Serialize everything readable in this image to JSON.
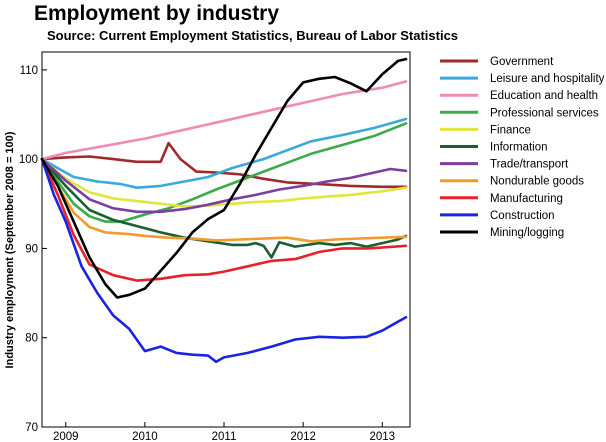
{
  "chart_data": {
    "type": "line",
    "title": "Employment by industry",
    "subtitle": "Source: Current Employment Statistics, Bureau of Labor Statistics",
    "xlabel": "",
    "ylabel": "Industry employment (September 2008 = 100)",
    "xlim": [
      2008.7,
      2013.35
    ],
    "ylim": [
      70,
      112
    ],
    "yticks": [
      70,
      80,
      90,
      100,
      110
    ],
    "xticks": [
      {
        "value": 2009.0,
        "label": "2009"
      },
      {
        "value": 2010.0,
        "label": "2010"
      },
      {
        "value": 2011.0,
        "label": "2011"
      },
      {
        "value": 2012.0,
        "label": "2012"
      },
      {
        "value": 2013.0,
        "label": "2013"
      }
    ],
    "grid": false,
    "legend_position": "right",
    "series": [
      {
        "name": "Government",
        "color": "#9e2a2b",
        "points": [
          [
            2008.7,
            100
          ],
          [
            2009.0,
            100.2
          ],
          [
            2009.3,
            100.3
          ],
          [
            2009.6,
            100
          ],
          [
            2009.9,
            99.7
          ],
          [
            2010.2,
            99.7
          ],
          [
            2010.3,
            101.8
          ],
          [
            2010.45,
            100
          ],
          [
            2010.65,
            98.6
          ],
          [
            2010.9,
            98.5
          ],
          [
            2011.2,
            98.3
          ],
          [
            2011.5,
            97.8
          ],
          [
            2011.8,
            97.4
          ],
          [
            2012.2,
            97.2
          ],
          [
            2012.6,
            97
          ],
          [
            2013.0,
            96.9
          ],
          [
            2013.3,
            96.9
          ]
        ]
      },
      {
        "name": "Leisure and hospitality",
        "color": "#39a9dc",
        "points": [
          [
            2008.7,
            100
          ],
          [
            2008.9,
            99
          ],
          [
            2009.1,
            98
          ],
          [
            2009.4,
            97.5
          ],
          [
            2009.7,
            97.2
          ],
          [
            2009.9,
            96.8
          ],
          [
            2010.2,
            97
          ],
          [
            2010.5,
            97.5
          ],
          [
            2010.8,
            98
          ],
          [
            2011.1,
            99
          ],
          [
            2011.5,
            100
          ],
          [
            2011.8,
            101
          ],
          [
            2012.1,
            102
          ],
          [
            2012.5,
            102.7
          ],
          [
            2012.9,
            103.5
          ],
          [
            2013.3,
            104.5
          ]
        ]
      },
      {
        "name": "Education and health",
        "color": "#f08bb5",
        "points": [
          [
            2008.7,
            100
          ],
          [
            2009.0,
            100.7
          ],
          [
            2009.5,
            101.5
          ],
          [
            2010.0,
            102.3
          ],
          [
            2010.5,
            103.3
          ],
          [
            2011.0,
            104.3
          ],
          [
            2011.5,
            105.3
          ],
          [
            2012.0,
            106.3
          ],
          [
            2012.5,
            107.3
          ],
          [
            2013.0,
            108
          ],
          [
            2013.3,
            108.7
          ]
        ]
      },
      {
        "name": "Professional services",
        "color": "#3aaa4a",
        "points": [
          [
            2008.7,
            100
          ],
          [
            2008.9,
            97.5
          ],
          [
            2009.1,
            95
          ],
          [
            2009.3,
            93.6
          ],
          [
            2009.5,
            93
          ],
          [
            2009.7,
            93
          ],
          [
            2010.0,
            93.8
          ],
          [
            2010.3,
            94.5
          ],
          [
            2010.6,
            95.5
          ],
          [
            2010.9,
            96.6
          ],
          [
            2011.2,
            97.6
          ],
          [
            2011.5,
            98.6
          ],
          [
            2011.8,
            99.6
          ],
          [
            2012.1,
            100.6
          ],
          [
            2012.5,
            101.6
          ],
          [
            2012.9,
            102.6
          ],
          [
            2013.3,
            104
          ]
        ]
      },
      {
        "name": "Finance",
        "color": "#e2e63c",
        "points": [
          [
            2008.7,
            100
          ],
          [
            2009.0,
            97.8
          ],
          [
            2009.3,
            96.3
          ],
          [
            2009.6,
            95.6
          ],
          [
            2009.9,
            95.3
          ],
          [
            2010.2,
            95
          ],
          [
            2010.5,
            94.7
          ],
          [
            2010.8,
            94.8
          ],
          [
            2011.1,
            95
          ],
          [
            2011.4,
            95.2
          ],
          [
            2011.7,
            95.3
          ],
          [
            2012.0,
            95.6
          ],
          [
            2012.3,
            95.8
          ],
          [
            2012.6,
            96
          ],
          [
            2013.0,
            96.4
          ],
          [
            2013.3,
            96.8
          ]
        ]
      },
      {
        "name": "Information",
        "color": "#1a5e32",
        "points": [
          [
            2008.7,
            100
          ],
          [
            2009.0,
            97
          ],
          [
            2009.3,
            94.3
          ],
          [
            2009.6,
            93.2
          ],
          [
            2009.9,
            92.5
          ],
          [
            2010.2,
            91.8
          ],
          [
            2010.5,
            91.2
          ],
          [
            2010.8,
            90.8
          ],
          [
            2011.1,
            90.4
          ],
          [
            2011.3,
            90.4
          ],
          [
            2011.4,
            90.6
          ],
          [
            2011.5,
            90.3
          ],
          [
            2011.6,
            89
          ],
          [
            2011.7,
            90.7
          ],
          [
            2011.9,
            90.2
          ],
          [
            2012.2,
            90.6
          ],
          [
            2012.4,
            90.4
          ],
          [
            2012.6,
            90.6
          ],
          [
            2012.8,
            90.2
          ],
          [
            2013.0,
            90.6
          ],
          [
            2013.2,
            91
          ],
          [
            2013.3,
            91.4
          ]
        ]
      },
      {
        "name": "Trade/transport",
        "color": "#7a3fa0",
        "points": [
          [
            2008.7,
            100
          ],
          [
            2009.0,
            97.6
          ],
          [
            2009.3,
            95.5
          ],
          [
            2009.6,
            94.5
          ],
          [
            2009.9,
            94.1
          ],
          [
            2010.2,
            94.1
          ],
          [
            2010.5,
            94.4
          ],
          [
            2010.8,
            94.9
          ],
          [
            2011.1,
            95.5
          ],
          [
            2011.4,
            96
          ],
          [
            2011.7,
            96.6
          ],
          [
            2012.0,
            97
          ],
          [
            2012.3,
            97.5
          ],
          [
            2012.6,
            97.9
          ],
          [
            2012.9,
            98.5
          ],
          [
            2013.1,
            98.9
          ],
          [
            2013.3,
            98.7
          ]
        ]
      },
      {
        "name": "Nondurable goods",
        "color": "#f29a2e",
        "points": [
          [
            2008.7,
            100
          ],
          [
            2008.9,
            97
          ],
          [
            2009.1,
            94
          ],
          [
            2009.3,
            92.4
          ],
          [
            2009.5,
            91.8
          ],
          [
            2009.8,
            91.6
          ],
          [
            2010.0,
            91.4
          ],
          [
            2010.3,
            91.2
          ],
          [
            2010.6,
            91.1
          ],
          [
            2010.9,
            90.9
          ],
          [
            2011.2,
            91
          ],
          [
            2011.5,
            91.1
          ],
          [
            2011.8,
            91.2
          ],
          [
            2012.1,
            90.8
          ],
          [
            2012.4,
            91
          ],
          [
            2012.7,
            91.1
          ],
          [
            2013.0,
            91.2
          ],
          [
            2013.3,
            91.3
          ]
        ]
      },
      {
        "name": "Manufacturing",
        "color": "#e8202a",
        "points": [
          [
            2008.7,
            100
          ],
          [
            2008.9,
            96
          ],
          [
            2009.1,
            91.5
          ],
          [
            2009.3,
            88.2
          ],
          [
            2009.6,
            87
          ],
          [
            2009.9,
            86.4
          ],
          [
            2010.2,
            86.6
          ],
          [
            2010.5,
            87
          ],
          [
            2010.8,
            87.1
          ],
          [
            2011.0,
            87.4
          ],
          [
            2011.3,
            88
          ],
          [
            2011.6,
            88.6
          ],
          [
            2011.9,
            88.8
          ],
          [
            2012.2,
            89.6
          ],
          [
            2012.5,
            90
          ],
          [
            2012.8,
            90
          ],
          [
            2013.0,
            90.1
          ],
          [
            2013.3,
            90.3
          ]
        ]
      },
      {
        "name": "Construction",
        "color": "#1a24e0",
        "points": [
          [
            2008.7,
            100
          ],
          [
            2008.85,
            96
          ],
          [
            2009.0,
            93
          ],
          [
            2009.2,
            88
          ],
          [
            2009.4,
            85
          ],
          [
            2009.6,
            82.5
          ],
          [
            2009.8,
            81
          ],
          [
            2010.0,
            78.5
          ],
          [
            2010.2,
            79
          ],
          [
            2010.4,
            78.3
          ],
          [
            2010.6,
            78.1
          ],
          [
            2010.8,
            78
          ],
          [
            2010.9,
            77.3
          ],
          [
            2011.0,
            77.8
          ],
          [
            2011.3,
            78.3
          ],
          [
            2011.6,
            79
          ],
          [
            2011.9,
            79.8
          ],
          [
            2012.2,
            80.1
          ],
          [
            2012.5,
            80
          ],
          [
            2012.8,
            80.1
          ],
          [
            2013.0,
            80.8
          ],
          [
            2013.2,
            81.8
          ],
          [
            2013.3,
            82.3
          ]
        ]
      },
      {
        "name": "Mining/logging",
        "color": "#000000",
        "points": [
          [
            2008.7,
            100
          ],
          [
            2008.9,
            97
          ],
          [
            2009.1,
            93
          ],
          [
            2009.3,
            89
          ],
          [
            2009.5,
            86
          ],
          [
            2009.65,
            84.5
          ],
          [
            2009.8,
            84.8
          ],
          [
            2010.0,
            85.5
          ],
          [
            2010.2,
            87.5
          ],
          [
            2010.4,
            89.5
          ],
          [
            2010.6,
            91.8
          ],
          [
            2010.8,
            93.3
          ],
          [
            2011.0,
            94.3
          ],
          [
            2011.2,
            97.2
          ],
          [
            2011.4,
            100.5
          ],
          [
            2011.6,
            103.5
          ],
          [
            2011.8,
            106.5
          ],
          [
            2012.0,
            108.6
          ],
          [
            2012.2,
            109
          ],
          [
            2012.4,
            109.2
          ],
          [
            2012.6,
            108.5
          ],
          [
            2012.8,
            107.6
          ],
          [
            2013.0,
            109.5
          ],
          [
            2013.2,
            111
          ],
          [
            2013.3,
            111.2
          ]
        ]
      }
    ]
  }
}
